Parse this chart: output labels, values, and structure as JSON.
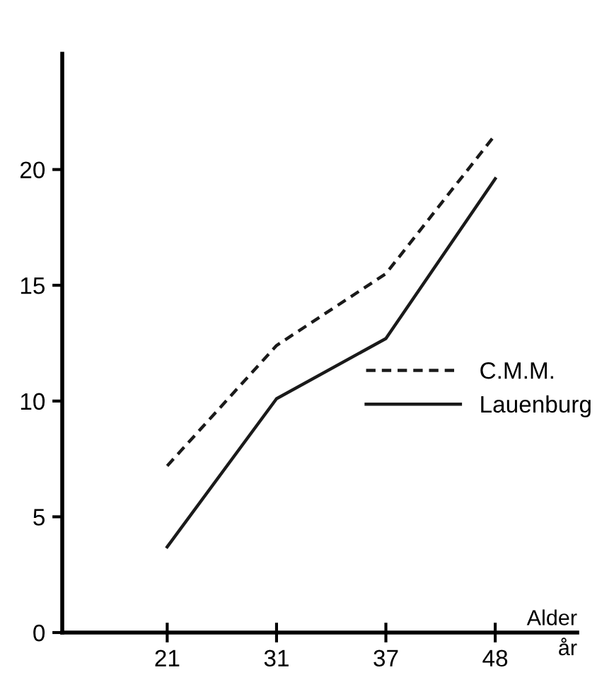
{
  "chart_data": {
    "type": "line",
    "xlabel": "Alder",
    "annotations": [
      "år"
    ],
    "categories": [
      "21",
      "31",
      "37",
      "48"
    ],
    "series": [
      {
        "name": "C.M.M.",
        "color": "#1a1a1a",
        "line_style": "dashed",
        "values": [
          7.2,
          12.4,
          15.5,
          21.5
        ]
      },
      {
        "name": "Lauenburg",
        "color": "#1a1a1a",
        "line_style": "solid",
        "values": [
          3.7,
          10.1,
          12.7,
          19.6
        ]
      }
    ],
    "ylim": [
      0,
      25
    ],
    "yticks": [
      0,
      5,
      10,
      15,
      20
    ],
    "grid": false,
    "legend": "right",
    "marker": "none"
  }
}
